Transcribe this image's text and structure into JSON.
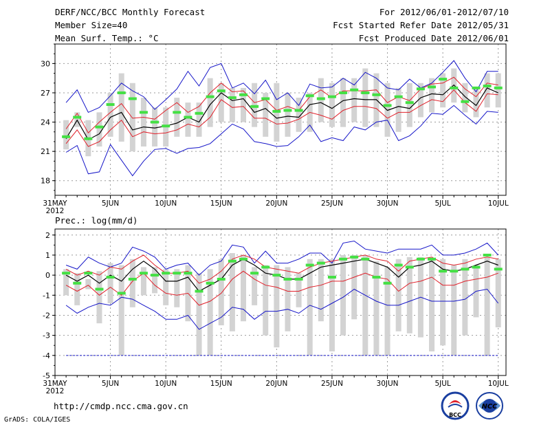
{
  "header": {
    "title": "DERF/NCC/BCC Monthly Forecast",
    "members": "Member Size=40",
    "variable": "Mean Surf. Temp.: °C",
    "period": "For 2012/06/01-2012/07/10",
    "started": "Fcst Started Refer Date 2012/05/31",
    "produced": "Fcst Produced Date 2012/06/01"
  },
  "footer": {
    "url": "http://cmdp.ncc.cma.gov.cn",
    "grads": "GrADS: COLA/IGES",
    "logo_bcc": "BCC",
    "logo_ncc": "NCC"
  },
  "colors": {
    "box": "#d3d3d3",
    "mean": "#000000",
    "spread": "#e0202a",
    "range": "#1414c8",
    "obs_marker": "#44e044",
    "frame": "#000000"
  },
  "chart_data": [
    {
      "type": "line",
      "title": "Mean Surf. Temp.: °C",
      "xlabel": "",
      "ylabel": "",
      "x_ticks": [
        "31MAY\n2012",
        "5JUN",
        "10JUN",
        "15JUN",
        "20JUN",
        "25JUN",
        "30JUN",
        "5JUL",
        "10JUL"
      ],
      "x_tick_days": [
        0,
        5,
        10,
        15,
        20,
        25,
        30,
        35,
        40
      ],
      "xlim": [
        0,
        40.7
      ],
      "ylim": [
        16.5,
        32
      ],
      "y_ticks": [
        18,
        21,
        24,
        27,
        30
      ],
      "days": [
        1,
        2,
        3,
        4,
        5,
        6,
        7,
        8,
        9,
        10,
        11,
        12,
        13,
        14,
        15,
        16,
        17,
        18,
        19,
        20,
        21,
        22,
        23,
        24,
        25,
        26,
        27,
        28,
        29,
        30,
        31,
        32,
        33,
        34,
        35,
        36,
        37,
        38,
        39,
        40
      ],
      "box_low": [
        21.2,
        23.5,
        20.5,
        21.5,
        22.5,
        22.0,
        21.0,
        21.5,
        21.5,
        21.5,
        22.5,
        22.5,
        22.5,
        23.5,
        24.0,
        24.0,
        24.0,
        23.5,
        22.5,
        22.0,
        22.5,
        23.0,
        23.0,
        24.0,
        23.5,
        23.5,
        24.0,
        23.5,
        23.5,
        22.5,
        23.0,
        23.5,
        24.5,
        25.0,
        25.5,
        26.0,
        25.0,
        24.5,
        25.5,
        25.5
      ],
      "box_high": [
        24.2,
        25.0,
        24.2,
        25.0,
        27.0,
        29.0,
        28.0,
        26.5,
        25.5,
        25.5,
        26.5,
        26.0,
        26.0,
        28.5,
        28.0,
        27.5,
        27.5,
        28.0,
        27.0,
        28.0,
        27.0,
        26.5,
        27.0,
        28.5,
        28.0,
        28.5,
        28.5,
        29.5,
        29.0,
        28.0,
        27.5,
        28.0,
        28.0,
        28.5,
        29.0,
        29.5,
        28.0,
        27.5,
        29.0,
        29.0
      ],
      "mean": [
        22.3,
        24.2,
        22.2,
        22.8,
        24.5,
        25.0,
        23.2,
        23.5,
        23.4,
        23.6,
        23.9,
        24.5,
        24.0,
        25.8,
        27.0,
        26.2,
        26.4,
        25.0,
        25.4,
        24.4,
        24.6,
        24.5,
        25.8,
        26.0,
        25.4,
        26.2,
        26.4,
        26.3,
        26.3,
        25.2,
        25.6,
        25.4,
        26.5,
        26.9,
        26.8,
        27.8,
        26.6,
        25.7,
        27.5,
        27.0
      ],
      "spread_upper": [
        23.3,
        24.9,
        22.9,
        24.0,
        25.0,
        25.9,
        24.4,
        24.5,
        24.3,
        25.2,
        26.0,
        25.0,
        25.6,
        27.0,
        28.0,
        27.1,
        27.2,
        26.0,
        26.3,
        25.2,
        25.6,
        25.2,
        26.6,
        27.3,
        26.5,
        27.2,
        27.2,
        27.2,
        27.3,
        26.0,
        26.6,
        26.2,
        27.4,
        27.9,
        28.0,
        28.6,
        27.4,
        26.6,
        28.0,
        27.8
      ],
      "spread_lower": [
        21.8,
        23.2,
        21.5,
        22.0,
        23.2,
        24.2,
        22.5,
        23.0,
        22.8,
        22.9,
        23.2,
        23.8,
        23.5,
        24.5,
        26.3,
        25.5,
        25.6,
        24.4,
        24.4,
        23.8,
        23.9,
        24.3,
        25.0,
        24.7,
        24.3,
        25.2,
        25.6,
        25.6,
        25.4,
        24.4,
        25.0,
        25.0,
        25.7,
        26.3,
        26.1,
        27.3,
        26.0,
        25.1,
        26.9,
        26.8
      ],
      "range_upper": [
        26.0,
        27.3,
        25.0,
        25.5,
        26.7,
        28.0,
        27.2,
        26.6,
        25.3,
        26.3,
        27.4,
        29.2,
        27.7,
        29.6,
        30.0,
        27.5,
        28.0,
        26.9,
        28.3,
        26.3,
        27.0,
        25.7,
        27.9,
        27.5,
        27.6,
        28.5,
        27.8,
        29.1,
        28.5,
        27.5,
        27.3,
        28.4,
        27.5,
        28.0,
        29.1,
        30.3,
        28.5,
        27.1,
        29.2,
        29.2
      ],
      "range_lower": [
        20.9,
        21.6,
        18.7,
        18.9,
        21.7,
        20.1,
        18.5,
        20.0,
        21.2,
        21.3,
        20.8,
        21.3,
        21.4,
        21.8,
        22.8,
        23.8,
        23.3,
        22.0,
        21.8,
        21.5,
        21.6,
        22.5,
        23.7,
        22.0,
        22.4,
        22.1,
        23.5,
        23.2,
        24.0,
        24.2,
        22.1,
        22.6,
        23.6,
        24.9,
        24.8,
        25.7,
        24.7,
        23.8,
        25.1,
        25.0
      ],
      "marker": [
        22.5,
        24.5,
        22.3,
        23.5,
        25.8,
        27.0,
        26.4,
        25.0,
        24.0,
        23.6,
        25.0,
        24.5,
        24.9,
        26.6,
        27.2,
        26.5,
        26.8,
        25.6,
        26.4,
        25.1,
        25.2,
        25.2,
        26.7,
        26.4,
        26.6,
        27.0,
        27.3,
        27.0,
        26.8,
        25.7,
        26.6,
        26.0,
        27.4,
        27.6,
        28.4,
        27.5,
        26.1,
        27.5,
        27.7,
        27.5
      ]
    },
    {
      "type": "line",
      "title": "Prec.: log(mm/d)",
      "xlabel": "",
      "ylabel": "",
      "x_ticks": [
        "31MAY\n2012",
        "5JUN",
        "10JUN",
        "15JUN",
        "20JUN",
        "25JUN",
        "30JUN",
        "5JUL",
        "10JUL"
      ],
      "x_tick_days": [
        0,
        5,
        10,
        15,
        20,
        25,
        30,
        35,
        40
      ],
      "xlim": [
        0,
        40.7
      ],
      "ylim": [
        -5,
        2.3
      ],
      "y_ticks": [
        -5,
        -4,
        -3,
        -2,
        -1,
        0,
        1,
        2
      ],
      "days": [
        1,
        2,
        3,
        4,
        5,
        6,
        7,
        8,
        9,
        10,
        11,
        12,
        13,
        14,
        15,
        16,
        17,
        18,
        19,
        20,
        21,
        22,
        23,
        24,
        25,
        26,
        27,
        28,
        29,
        30,
        31,
        32,
        33,
        34,
        35,
        36,
        37,
        38,
        39,
        40
      ],
      "box_low": [
        -1.0,
        -1.5,
        -0.7,
        -2.4,
        -1.4,
        -4.0,
        -1.6,
        -1.0,
        -0.9,
        -1.5,
        -1.6,
        -2.3,
        -4.0,
        -4.0,
        -2.5,
        -2.8,
        -2.3,
        -1.5,
        -3.0,
        -3.6,
        -2.8,
        -1.6,
        -4.0,
        -2.3,
        -3.8,
        -3.0,
        -2.2,
        -4.0,
        -4.0,
        -4.0,
        -2.8,
        -2.9,
        -3.1,
        -3.8,
        -3.5,
        -4.0,
        -3.0,
        -2.1,
        -4.0,
        -2.6
      ],
      "box_high": [
        0.3,
        0.1,
        -0.2,
        0.2,
        0.6,
        0.5,
        0.8,
        0.4,
        0.4,
        0.3,
        0.3,
        0.5,
        0.1,
        0.3,
        0.8,
        1.1,
        1.0,
        0.4,
        0.5,
        0.5,
        0.4,
        0.1,
        0.8,
        0.8,
        0.8,
        1.0,
        1.0,
        1.0,
        0.7,
        0.4,
        0.8,
        0.9,
        0.9,
        0.8,
        0.8,
        0.5,
        0.8,
        0.5,
        0.9,
        0.8
      ],
      "mean": [
        0.0,
        -0.3,
        0.0,
        -0.4,
        0.0,
        -0.3,
        0.3,
        0.7,
        0.3,
        -0.3,
        -0.3,
        -0.1,
        -0.8,
        -0.5,
        -0.2,
        0.5,
        0.8,
        0.5,
        0.1,
        0.0,
        -0.2,
        -0.2,
        0.1,
        0.4,
        0.5,
        0.6,
        0.7,
        0.8,
        0.6,
        0.4,
        -0.1,
        0.4,
        0.5,
        0.7,
        0.3,
        0.2,
        0.3,
        0.5,
        0.7,
        0.5
      ],
      "spread_upper": [
        0.3,
        0.0,
        0.2,
        0.0,
        0.4,
        0.3,
        0.7,
        1.0,
        0.5,
        0.1,
        0.1,
        0.2,
        -0.4,
        -0.2,
        0.2,
        0.8,
        1.0,
        0.8,
        0.4,
        0.3,
        0.2,
        0.1,
        0.4,
        0.6,
        0.7,
        0.8,
        0.9,
        1.0,
        0.8,
        0.7,
        0.2,
        0.7,
        0.8,
        0.9,
        0.6,
        0.5,
        0.6,
        0.8,
        0.9,
        0.8
      ],
      "spread_lower": [
        -0.5,
        -0.8,
        -0.5,
        -1.0,
        -0.6,
        -1.0,
        -0.3,
        0.1,
        -0.5,
        -0.9,
        -1.0,
        -0.9,
        -1.5,
        -1.3,
        -0.9,
        -0.2,
        0.2,
        -0.2,
        -0.5,
        -0.6,
        -0.8,
        -0.8,
        -0.6,
        -0.5,
        -0.3,
        -0.3,
        -0.1,
        0.1,
        -0.1,
        -0.2,
        -0.8,
        -0.4,
        -0.3,
        -0.1,
        -0.5,
        -0.5,
        -0.3,
        -0.2,
        -0.1,
        0.1
      ],
      "range_upper": [
        0.5,
        0.3,
        0.9,
        0.6,
        0.4,
        0.6,
        1.4,
        1.2,
        0.9,
        0.3,
        0.5,
        0.6,
        0.0,
        0.5,
        0.7,
        1.5,
        1.4,
        0.6,
        1.2,
        0.6,
        0.6,
        0.8,
        1.1,
        1.1,
        0.6,
        1.6,
        1.7,
        1.3,
        1.2,
        1.1,
        1.3,
        1.3,
        1.3,
        1.5,
        1.0,
        1.0,
        1.1,
        1.3,
        1.6,
        1.0
      ],
      "range_lower": [
        -1.5,
        -1.9,
        -1.6,
        -1.4,
        -1.5,
        -1.1,
        -1.2,
        -1.5,
        -1.8,
        -2.2,
        -2.2,
        -2.0,
        -2.7,
        -2.4,
        -2.1,
        -1.6,
        -1.7,
        -2.2,
        -1.8,
        -1.8,
        -1.7,
        -1.9,
        -1.5,
        -1.7,
        -1.4,
        -1.1,
        -0.7,
        -1.0,
        -1.3,
        -1.5,
        -1.5,
        -1.3,
        -1.1,
        -1.3,
        -1.3,
        -1.3,
        -1.2,
        -0.8,
        -0.7,
        -1.4
      ],
      "marker": [
        0.1,
        -0.4,
        0.1,
        -0.7,
        -0.1,
        -0.9,
        -0.2,
        0.1,
        0.0,
        0.1,
        0.1,
        0.1,
        -0.8,
        -0.4,
        -0.2,
        0.7,
        0.8,
        0.1,
        0.4,
        0.0,
        -0.2,
        -0.2,
        0.5,
        0.6,
        -0.1,
        0.8,
        0.9,
        0.8,
        -0.1,
        -0.4,
        0.5,
        0.4,
        0.8,
        0.8,
        0.2,
        0.2,
        0.3,
        0.4,
        1.0,
        0.3
      ],
      "baseline": -4.0
    }
  ]
}
